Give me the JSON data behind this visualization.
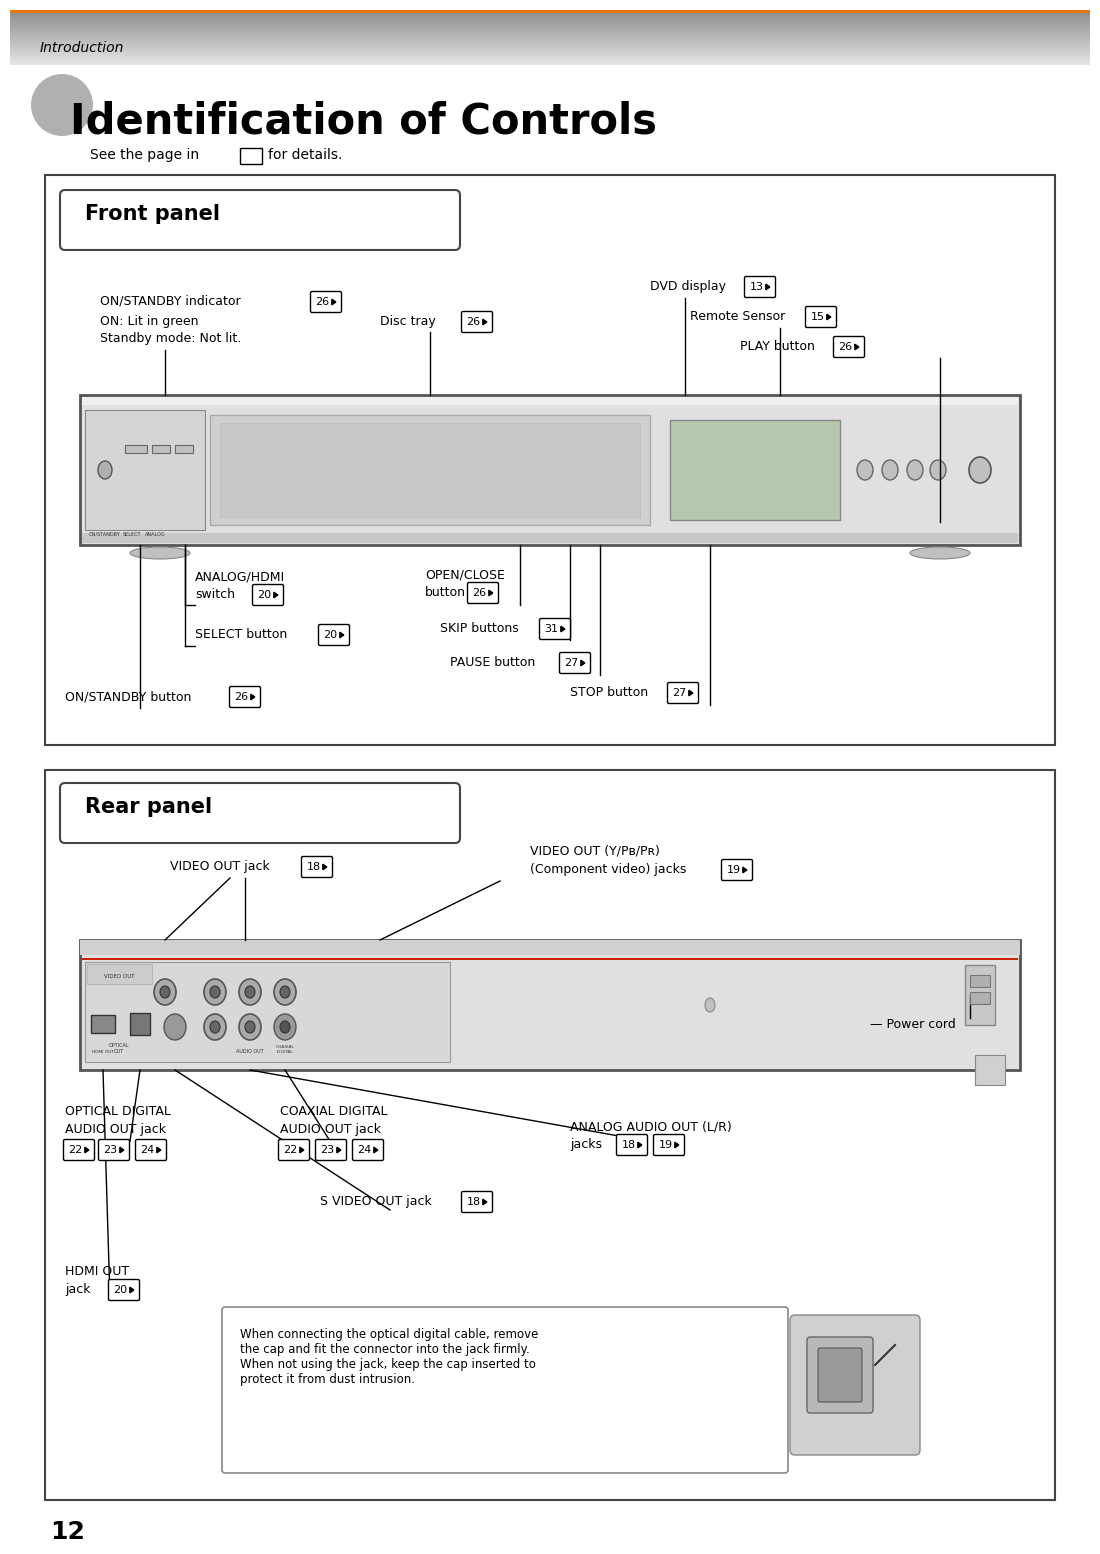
{
  "page_bg": "#ffffff",
  "header_text": "Introduction",
  "title": "Identification of Controls",
  "subtitle_pre": "See the page in",
  "subtitle_post": "for details.",
  "page_number": "12",
  "front_panel_label": "Front panel",
  "rear_panel_label": "Rear panel",
  "note_text": "When connecting the optical digital cable, remove\nthe cap and fit the connector into the jack firmly.\nWhen not using the jack, keep the cap inserted to\nprotect it from dust intrusion.",
  "ann_fontsize": 9,
  "label_fontsize": 15,
  "title_fontsize": 30,
  "header_fontsize": 10,
  "page_num_fontsize": 18
}
